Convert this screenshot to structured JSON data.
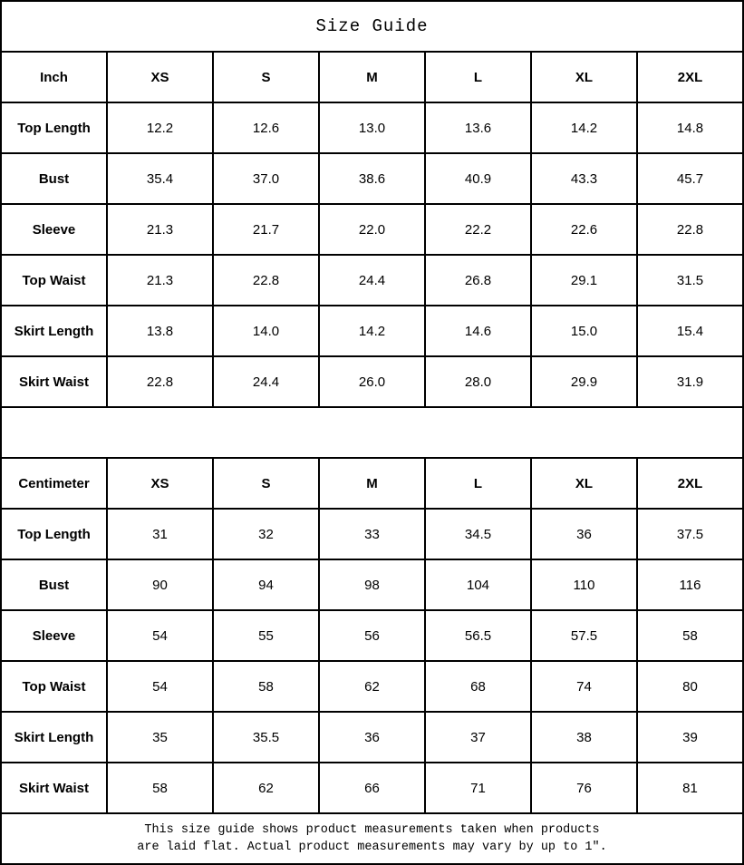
{
  "title": "Size Guide",
  "note": {
    "line1": "This size guide shows product measurements taken when products",
    "line2": "are laid flat. Actual product measurements may vary by up to 1″."
  },
  "colors": {
    "border": "#000000",
    "text": "#000000",
    "background": "#ffffff"
  },
  "chart_data": [
    {
      "type": "table",
      "title": "Size Guide",
      "unit_header": "Inch",
      "columns": [
        "XS",
        "S",
        "M",
        "L",
        "XL",
        "2XL"
      ],
      "rows": [
        {
          "label": "Top Length",
          "values": [
            "12.2",
            "12.6",
            "13.0",
            "13.6",
            "14.2",
            "14.8"
          ]
        },
        {
          "label": "Bust",
          "values": [
            "35.4",
            "37.0",
            "38.6",
            "40.9",
            "43.3",
            "45.7"
          ]
        },
        {
          "label": "Sleeve",
          "values": [
            "21.3",
            "21.7",
            "22.0",
            "22.2",
            "22.6",
            "22.8"
          ]
        },
        {
          "label": "Top Waist",
          "values": [
            "21.3",
            "22.8",
            "24.4",
            "26.8",
            "29.1",
            "31.5"
          ]
        },
        {
          "label": "Skirt Length",
          "values": [
            "13.8",
            "14.0",
            "14.2",
            "14.6",
            "15.0",
            "15.4"
          ]
        },
        {
          "label": "Skirt Waist",
          "values": [
            "22.8",
            "24.4",
            "26.0",
            "28.0",
            "29.9",
            "31.9"
          ]
        }
      ]
    },
    {
      "type": "table",
      "title": "Size Guide",
      "unit_header": "Centimeter",
      "columns": [
        "XS",
        "S",
        "M",
        "L",
        "XL",
        "2XL"
      ],
      "rows": [
        {
          "label": "Top Length",
          "values": [
            "31",
            "32",
            "33",
            "34.5",
            "36",
            "37.5"
          ]
        },
        {
          "label": "Bust",
          "values": [
            "90",
            "94",
            "98",
            "104",
            "110",
            "116"
          ]
        },
        {
          "label": "Sleeve",
          "values": [
            "54",
            "55",
            "56",
            "56.5",
            "57.5",
            "58"
          ]
        },
        {
          "label": "Top Waist",
          "values": [
            "54",
            "58",
            "62",
            "68",
            "74",
            "80"
          ]
        },
        {
          "label": "Skirt Length",
          "values": [
            "35",
            "35.5",
            "36",
            "37",
            "38",
            "39"
          ]
        },
        {
          "label": "Skirt Waist",
          "values": [
            "58",
            "62",
            "66",
            "71",
            "76",
            "81"
          ]
        }
      ]
    }
  ]
}
